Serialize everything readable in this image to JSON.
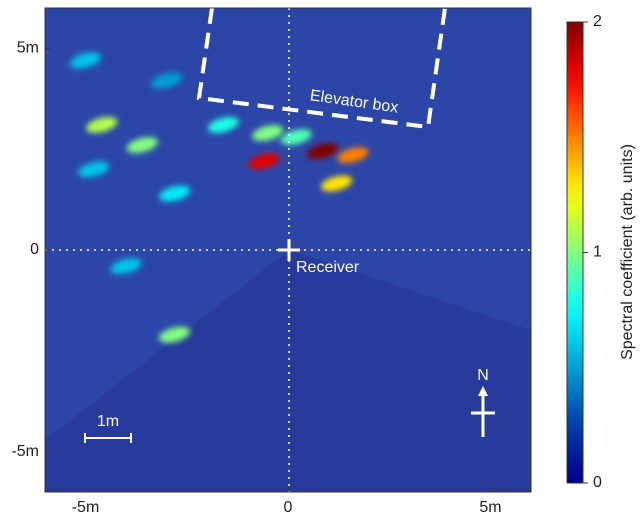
{
  "chart_data": {
    "type": "heatmap",
    "xlim": [
      -6,
      6
    ],
    "ylim": [
      -6,
      6
    ],
    "xticks": [
      {
        "value": -5,
        "label": "-5m"
      },
      0,
      {
        "value": 5,
        "label": "5m"
      }
    ],
    "yticks": [
      {
        "value": -5,
        "label": "-5m"
      },
      0,
      {
        "value": 5,
        "label": "5m"
      }
    ],
    "colormap": "jet",
    "colorbar": {
      "label": "Spectral coefficient (arb. units)",
      "lim": [
        0,
        2
      ],
      "ticks": [
        0,
        1,
        2
      ]
    },
    "annotations": {
      "elevator": "Elevator box",
      "receiver": "Receiver",
      "north": "N",
      "scale": "1m"
    },
    "hotspots": {
      "x": [
        -0.6,
        0.85,
        1.6,
        1.2,
        0.2,
        -0.5,
        -1.6,
        -4.6,
        -3.6,
        -2.8,
        -2.8,
        -4.8,
        -4.0,
        -5.0,
        -3.0
      ],
      "y": [
        2.2,
        2.45,
        2.35,
        1.65,
        2.8,
        2.9,
        3.1,
        3.1,
        2.6,
        1.4,
        -2.1,
        2.0,
        -0.4,
        4.7,
        4.2
      ],
      "values": [
        1.8,
        2.0,
        1.5,
        1.3,
        0.9,
        1.0,
        0.8,
        1.1,
        1.0,
        0.7,
        1.0,
        0.6,
        0.6,
        0.6,
        0.5
      ]
    }
  }
}
